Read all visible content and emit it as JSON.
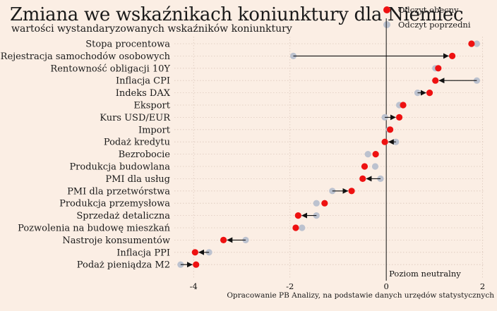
{
  "chart_data": {
    "type": "dot-arrow",
    "title": "Zmiana we wskaźnikach koniunktury dla Niemiec",
    "subtitle": "wartości wystandaryzowanych wskaźników koniunktury",
    "legend": {
      "placement": "top-right",
      "items": [
        {
          "label": "Odczyt obecny",
          "color": "#ee1111"
        },
        {
          "label": "Odczyt poprzedni",
          "color": "#bcc2cf"
        }
      ]
    },
    "xlim": [
      -4.4,
      2.05
    ],
    "x_ticks": [
      -4,
      -2,
      0,
      2
    ],
    "reference_line": {
      "x": 0,
      "label": "Poziom neutralny"
    },
    "grid": true,
    "categories": [
      "Stopa procentowa",
      "Rejestracja samochodów osobowych",
      "Rentowność obligacji 10Y",
      "Inflacja CPI",
      "Indeks DAX",
      "Eksport",
      "Kurs USD/EUR",
      "Import",
      "Podaż kredytu",
      "Bezrobocie",
      "Produkcja budowlana",
      "PMI dla usług",
      "PMI dla przetwórstwa",
      "Produkcja przemysłowa",
      "Sprzedaż detaliczna",
      "Pozwolenia na budowę mieszkań",
      "Nastroje konsumentów",
      "Inflacja PPI",
      "Podaż pieniądza M2"
    ],
    "series": [
      {
        "name": "Odczyt obecny",
        "values": [
          1.77,
          1.37,
          1.08,
          1.02,
          0.9,
          0.35,
          0.27,
          0.08,
          -0.03,
          -0.22,
          -0.45,
          -0.49,
          -0.72,
          -1.28,
          -1.83,
          -1.88,
          -3.38,
          -3.97,
          -3.95
        ]
      },
      {
        "name": "Odczyt poprzedni",
        "values": [
          1.88,
          -1.93,
          1.02,
          1.88,
          0.65,
          0.27,
          -0.03,
          0.06,
          0.2,
          -0.38,
          -0.23,
          -0.12,
          -1.12,
          -1.45,
          -1.45,
          -1.75,
          -2.92,
          -3.68,
          -4.27
        ]
      }
    ]
  },
  "caption": "Opracowanie PB Analizy, na podstawie danych urzędów statystycznych"
}
